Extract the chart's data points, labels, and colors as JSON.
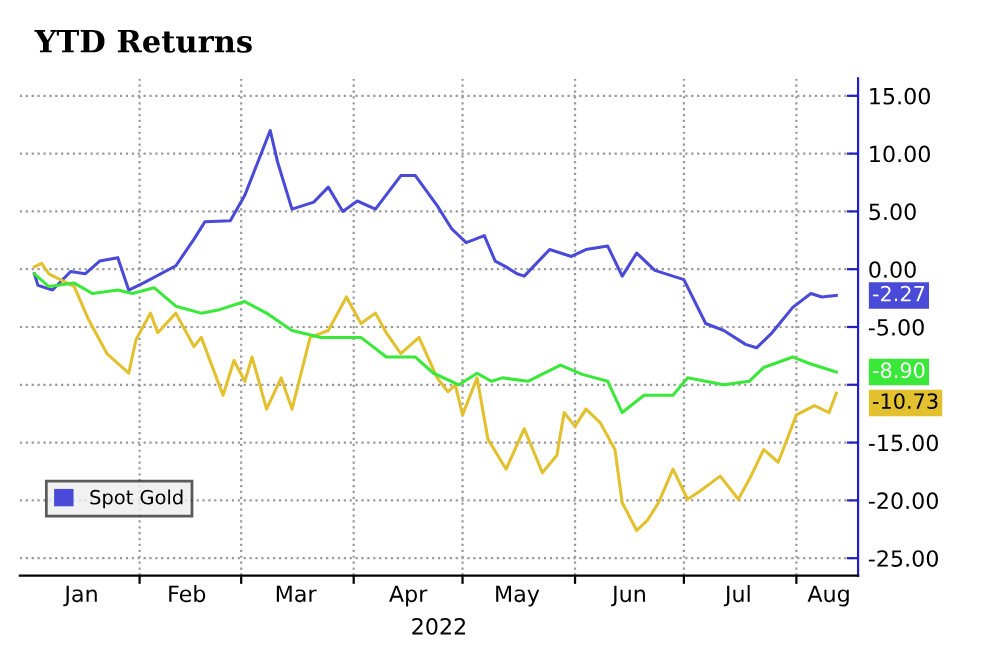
{
  "chart_data": {
    "type": "line",
    "title": "YTD Returns",
    "xlabel": "2022",
    "xlim": [
      "2021-12-30",
      "2022-08-18"
    ],
    "ylim": [
      -26.5,
      16.5
    ],
    "xticks": [
      {
        "value": "2022-01-16",
        "label": "Jan"
      },
      {
        "value": "2022-02-01",
        "label": null
      },
      {
        "value": "2022-02-14",
        "label": "Feb"
      },
      {
        "value": "2022-03-01",
        "label": null
      },
      {
        "value": "2022-03-16",
        "label": "Mar"
      },
      {
        "value": "2022-04-01",
        "label": null
      },
      {
        "value": "2022-04-16",
        "label": "Apr"
      },
      {
        "value": "2022-05-01",
        "label": null
      },
      {
        "value": "2022-05-16",
        "label": "May"
      },
      {
        "value": "2022-06-01",
        "label": null
      },
      {
        "value": "2022-06-16",
        "label": "Jun"
      },
      {
        "value": "2022-07-01",
        "label": null
      },
      {
        "value": "2022-07-16",
        "label": "Jul"
      },
      {
        "value": "2022-08-01",
        "label": null
      },
      {
        "value": "2022-08-10",
        "label": "Aug"
      }
    ],
    "yticks": [
      {
        "value": 15,
        "label": "15.00"
      },
      {
        "value": 10,
        "label": "10.00"
      },
      {
        "value": 5,
        "label": "5.00"
      },
      {
        "value": 0,
        "label": "0.00"
      },
      {
        "value": -5,
        "label": "-5.00"
      },
      {
        "value": -10,
        "label": null
      },
      {
        "value": -15,
        "label": "-15.00"
      },
      {
        "value": -20,
        "label": "-20.00"
      },
      {
        "value": -25,
        "label": "-25.00"
      }
    ],
    "grid": true,
    "legend": "bottom left",
    "series": [
      {
        "name": "Spot Gold",
        "color": "#4a4ad8",
        "x": [
          "2022-01-03",
          "2022-01-04",
          "2022-01-08",
          "2022-01-13",
          "2022-01-17",
          "2022-01-21",
          "2022-01-26",
          "2022-01-29",
          "2022-02-02",
          "2022-02-11",
          "2022-02-16",
          "2022-02-19",
          "2022-02-26",
          "2022-03-02",
          "2022-03-09",
          "2022-03-11",
          "2022-03-15",
          "2022-03-21",
          "2022-03-25",
          "2022-03-29",
          "2022-04-02",
          "2022-04-07",
          "2022-04-14",
          "2022-04-18",
          "2022-04-24",
          "2022-04-28",
          "2022-05-02",
          "2022-05-07",
          "2022-05-10",
          "2022-05-13",
          "2022-05-16",
          "2022-05-18",
          "2022-05-25",
          "2022-05-31",
          "2022-06-04",
          "2022-06-10",
          "2022-06-14",
          "2022-06-18",
          "2022-06-23",
          "2022-07-01",
          "2022-07-07",
          "2022-07-12",
          "2022-07-18",
          "2022-07-21",
          "2022-07-25",
          "2022-07-31",
          "2022-08-05",
          "2022-08-08",
          "2022-08-12"
        ],
        "values": [
          -0.4,
          -1.4,
          -1.8,
          -0.2,
          -0.4,
          0.7,
          1.0,
          -1.8,
          -1.2,
          0.3,
          2.6,
          4.1,
          4.2,
          6.4,
          12.0,
          9.3,
          5.2,
          5.8,
          7.1,
          5.0,
          5.9,
          5.2,
          8.1,
          8.1,
          5.5,
          3.5,
          2.3,
          2.9,
          0.7,
          0.2,
          -0.4,
          -0.6,
          1.7,
          1.1,
          1.7,
          2.0,
          -0.6,
          1.4,
          -0.1,
          -0.9,
          -4.7,
          -5.3,
          -6.5,
          -6.8,
          -5.6,
          -3.3,
          -2.1,
          -2.4,
          -2.27
        ],
        "value_labels": [
          null,
          null,
          null,
          null,
          null,
          null,
          null,
          null,
          null,
          null,
          null,
          null,
          null,
          null,
          null,
          null,
          null,
          null,
          null,
          null,
          null,
          null,
          null,
          null,
          null,
          null,
          null,
          null,
          null,
          null,
          null,
          null,
          null,
          null,
          null,
          null,
          null,
          null,
          null,
          null,
          null,
          null,
          null,
          null,
          null,
          null,
          null,
          null,
          "-2.27"
        ]
      },
      {
        "color": "#e3c02e",
        "x": [
          "2022-01-03",
          "2022-01-05",
          "2022-01-07",
          "2022-01-14",
          "2022-01-18",
          "2022-01-23",
          "2022-01-29",
          "2022-01-31",
          "2022-02-04",
          "2022-02-06",
          "2022-02-11",
          "2022-02-16",
          "2022-02-18",
          "2022-02-24",
          "2022-02-27",
          "2022-03-02",
          "2022-03-04",
          "2022-03-08",
          "2022-03-12",
          "2022-03-15",
          "2022-03-20",
          "2022-03-25",
          "2022-03-30",
          "2022-04-03",
          "2022-04-07",
          "2022-04-10",
          "2022-04-14",
          "2022-04-19",
          "2022-04-24",
          "2022-04-27",
          "2022-04-29",
          "2022-05-01",
          "2022-05-05",
          "2022-05-08",
          "2022-05-13",
          "2022-05-18",
          "2022-05-23",
          "2022-05-27",
          "2022-05-29",
          "2022-06-01",
          "2022-06-04",
          "2022-06-08",
          "2022-06-12",
          "2022-06-14",
          "2022-06-18",
          "2022-06-21",
          "2022-06-24",
          "2022-06-28",
          "2022-07-02",
          "2022-07-05",
          "2022-07-11",
          "2022-07-16",
          "2022-07-19",
          "2022-07-23",
          "2022-07-27",
          "2022-08-01",
          "2022-08-06",
          "2022-08-10",
          "2022-08-12"
        ],
        "values": [
          0.2,
          0.5,
          -0.4,
          -1.5,
          -4.4,
          -7.3,
          -9.0,
          -6.1,
          -3.8,
          -5.5,
          -3.8,
          -6.7,
          -5.9,
          -10.9,
          -7.9,
          -9.7,
          -7.6,
          -12.1,
          -9.4,
          -12.1,
          -5.9,
          -5.3,
          -2.4,
          -4.7,
          -3.8,
          -5.5,
          -7.3,
          -5.9,
          -9.4,
          -10.6,
          -10.0,
          -12.6,
          -9.4,
          -14.7,
          -17.3,
          -13.8,
          -17.6,
          -16.1,
          -12.4,
          -13.6,
          -12.1,
          -13.3,
          -15.6,
          -20.2,
          -22.6,
          -21.7,
          -20.2,
          -17.3,
          -19.9,
          -19.3,
          -17.9,
          -19.9,
          -18.2,
          -15.6,
          -16.7,
          -12.6,
          -11.8,
          -12.4,
          -10.73
        ],
        "value_labels": [
          null,
          null,
          null,
          null,
          null,
          null,
          null,
          null,
          null,
          null,
          null,
          null,
          null,
          null,
          null,
          null,
          null,
          null,
          null,
          null,
          null,
          null,
          null,
          null,
          null,
          null,
          null,
          null,
          null,
          null,
          null,
          null,
          null,
          null,
          null,
          null,
          null,
          null,
          null,
          null,
          null,
          null,
          null,
          null,
          null,
          null,
          null,
          null,
          null,
          null,
          null,
          null,
          null,
          null,
          null,
          null,
          null,
          null,
          "-10.73"
        ]
      },
      {
        "color": "#3ae83a",
        "x": [
          "2022-01-03",
          "2022-01-07",
          "2022-01-14",
          "2022-01-19",
          "2022-01-26",
          "2022-01-30",
          "2022-02-05",
          "2022-02-11",
          "2022-02-18",
          "2022-02-23",
          "2022-03-02",
          "2022-03-08",
          "2022-03-15",
          "2022-03-23",
          "2022-03-28",
          "2022-04-03",
          "2022-04-10",
          "2022-04-18",
          "2022-04-23",
          "2022-04-30",
          "2022-05-05",
          "2022-05-09",
          "2022-05-12",
          "2022-05-19",
          "2022-05-28",
          "2022-06-03",
          "2022-06-10",
          "2022-06-14",
          "2022-06-20",
          "2022-06-28",
          "2022-07-02",
          "2022-07-12",
          "2022-07-19",
          "2022-07-23",
          "2022-07-31",
          "2022-08-05",
          "2022-08-12"
        ],
        "values": [
          -0.4,
          -1.5,
          -1.2,
          -2.1,
          -1.8,
          -2.1,
          -1.6,
          -3.2,
          -3.8,
          -3.5,
          -2.8,
          -3.8,
          -5.3,
          -5.9,
          -5.9,
          -5.9,
          -7.6,
          -7.6,
          -9.0,
          -10.0,
          -9.0,
          -9.7,
          -9.4,
          -9.7,
          -8.3,
          -9.1,
          -9.7,
          -12.4,
          -10.9,
          -10.9,
          -9.4,
          -10.0,
          -9.7,
          -8.5,
          -7.6,
          -8.2,
          -8.9
        ],
        "value_labels": [
          null,
          null,
          null,
          null,
          null,
          null,
          null,
          null,
          null,
          null,
          null,
          null,
          null,
          null,
          null,
          null,
          null,
          null,
          null,
          null,
          null,
          null,
          null,
          null,
          null,
          null,
          null,
          null,
          null,
          null,
          null,
          null,
          null,
          null,
          null,
          null,
          "-8.90"
        ]
      }
    ]
  }
}
